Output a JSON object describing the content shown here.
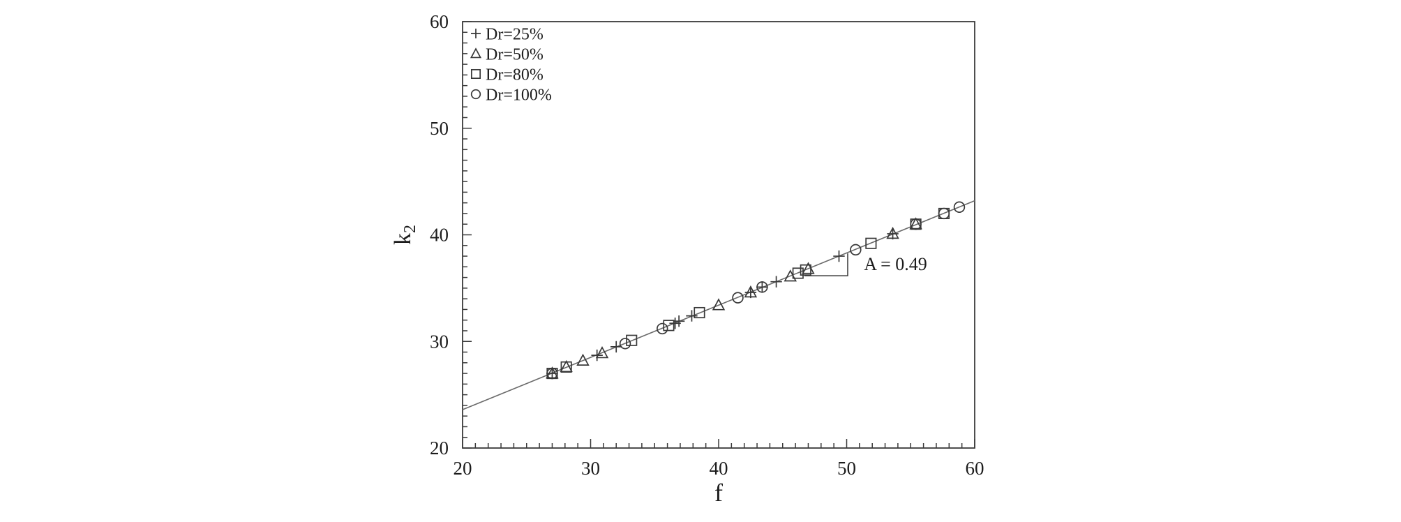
{
  "figure": {
    "background": "#ffffff",
    "colors": {
      "marker": "#383838",
      "trendline": "#6a6a6a",
      "axis": "#3a3a3a",
      "text": "#1c1c1c"
    }
  },
  "chart_data": {
    "type": "scatter",
    "title": "",
    "xlabel": "f",
    "ylabel": "k",
    "ylabel_subscript": "2",
    "xlim": [
      20,
      60
    ],
    "ylim": [
      20,
      60
    ],
    "x_major_ticks": [
      20,
      30,
      40,
      50,
      60
    ],
    "y_major_ticks": [
      20,
      30,
      40,
      50,
      60
    ],
    "minor_tick_step": 1,
    "grid": false,
    "legend_position": "top-left-inside",
    "legend": [
      {
        "marker": "plus",
        "label": "Dr=25%"
      },
      {
        "marker": "triangle",
        "label": "Dr=50%"
      },
      {
        "marker": "square",
        "label": "Dr=80%"
      },
      {
        "marker": "circle",
        "label": "Dr=100%"
      }
    ],
    "series": [
      {
        "name": "Dr=25%",
        "marker": "plus",
        "points": [
          [
            27.0,
            27.0
          ],
          [
            30.5,
            28.7
          ],
          [
            32.0,
            29.5
          ],
          [
            36.6,
            31.7
          ],
          [
            36.9,
            31.9
          ],
          [
            37.9,
            32.4
          ],
          [
            42.5,
            34.6
          ],
          [
            43.4,
            35.1
          ],
          [
            44.5,
            35.6
          ],
          [
            49.4,
            38.0
          ],
          [
            53.6,
            40.1
          ]
        ]
      },
      {
        "name": "Dr=50%",
        "marker": "triangle",
        "points": [
          [
            27.0,
            27.0
          ],
          [
            28.1,
            27.6
          ],
          [
            29.4,
            28.2
          ],
          [
            30.9,
            28.9
          ],
          [
            40.0,
            33.4
          ],
          [
            42.5,
            34.6
          ],
          [
            45.6,
            36.1
          ],
          [
            47.0,
            36.8
          ],
          [
            53.6,
            40.1
          ],
          [
            55.4,
            41.0
          ]
        ]
      },
      {
        "name": "Dr=80%",
        "marker": "square",
        "points": [
          [
            27.0,
            27.0
          ],
          [
            28.1,
            27.6
          ],
          [
            33.2,
            30.1
          ],
          [
            36.1,
            31.5
          ],
          [
            38.5,
            32.7
          ],
          [
            46.2,
            36.4
          ],
          [
            46.8,
            36.7
          ],
          [
            51.9,
            39.2
          ],
          [
            55.4,
            41.0
          ],
          [
            57.6,
            42.0
          ]
        ]
      },
      {
        "name": "Dr=100%",
        "marker": "circle",
        "points": [
          [
            27.0,
            27.0
          ],
          [
            32.7,
            29.8
          ],
          [
            35.6,
            31.2
          ],
          [
            41.5,
            34.1
          ],
          [
            43.4,
            35.1
          ],
          [
            50.7,
            38.6
          ],
          [
            55.4,
            41.0
          ],
          [
            57.6,
            42.0
          ],
          [
            58.8,
            42.6
          ]
        ]
      }
    ],
    "trendline": {
      "slope": 0.49,
      "intercept": 13.8,
      "f_start": 20,
      "f_end": 60
    },
    "annotation": {
      "label": "A = 0.49",
      "label_f": 51.35,
      "label_k": 36.7,
      "slope_triangle": {
        "f1": 46.7,
        "f2": 50.08,
        "k_base": 36.16,
        "k_top": 38.26
      }
    }
  }
}
